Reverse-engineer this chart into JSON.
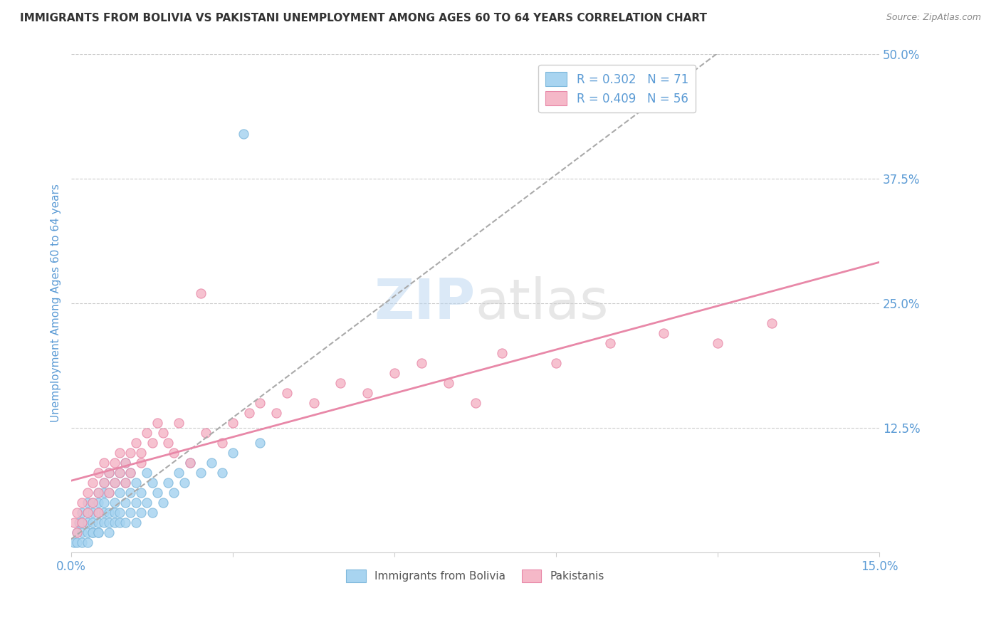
{
  "title": "IMMIGRANTS FROM BOLIVIA VS PAKISTANI UNEMPLOYMENT AMONG AGES 60 TO 64 YEARS CORRELATION CHART",
  "source": "Source: ZipAtlas.com",
  "ylabel": "Unemployment Among Ages 60 to 64 years",
  "xlim": [
    0.0,
    0.15
  ],
  "ylim": [
    0.0,
    0.5
  ],
  "xticks": [
    0.0,
    0.03,
    0.06,
    0.09,
    0.12,
    0.15
  ],
  "xtick_labels": [
    "0.0%",
    "",
    "",
    "",
    "",
    "15.0%"
  ],
  "ytick_labels_right": [
    "12.5%",
    "25.0%",
    "37.5%",
    "50.0%"
  ],
  "yticks_right": [
    0.125,
    0.25,
    0.375,
    0.5
  ],
  "legend1_label": "Immigrants from Bolivia",
  "legend2_label": "Pakistanis",
  "R1": 0.302,
  "N1": 71,
  "R2": 0.409,
  "N2": 56,
  "color_blue": "#A8D4F0",
  "color_blue_border": "#7EB8DC",
  "color_pink": "#F5B8C8",
  "color_pink_border": "#E888A8",
  "color_trendline_blue": "#AAAAAA",
  "color_trendline_pink": "#E888A8",
  "background_color": "#FFFFFF",
  "grid_color": "#CCCCCC",
  "title_color": "#333333",
  "axis_label_color": "#5B9BD5",
  "scatter_blue_x": [
    0.0005,
    0.001,
    0.001,
    0.0015,
    0.002,
    0.002,
    0.002,
    0.002,
    0.003,
    0.003,
    0.003,
    0.003,
    0.003,
    0.004,
    0.004,
    0.004,
    0.004,
    0.004,
    0.005,
    0.005,
    0.005,
    0.005,
    0.005,
    0.005,
    0.006,
    0.006,
    0.006,
    0.006,
    0.006,
    0.007,
    0.007,
    0.007,
    0.007,
    0.007,
    0.008,
    0.008,
    0.008,
    0.008,
    0.009,
    0.009,
    0.009,
    0.009,
    0.01,
    0.01,
    0.01,
    0.01,
    0.011,
    0.011,
    0.011,
    0.012,
    0.012,
    0.012,
    0.013,
    0.013,
    0.014,
    0.014,
    0.015,
    0.015,
    0.016,
    0.017,
    0.018,
    0.019,
    0.02,
    0.021,
    0.022,
    0.024,
    0.026,
    0.028,
    0.03,
    0.035,
    0.032
  ],
  "scatter_blue_y": [
    0.01,
    0.02,
    0.01,
    0.03,
    0.02,
    0.01,
    0.03,
    0.04,
    0.02,
    0.04,
    0.01,
    0.03,
    0.05,
    0.03,
    0.02,
    0.04,
    0.02,
    0.05,
    0.04,
    0.02,
    0.06,
    0.03,
    0.05,
    0.02,
    0.04,
    0.06,
    0.03,
    0.05,
    0.07,
    0.04,
    0.02,
    0.06,
    0.08,
    0.03,
    0.05,
    0.03,
    0.07,
    0.04,
    0.06,
    0.04,
    0.08,
    0.03,
    0.05,
    0.07,
    0.03,
    0.09,
    0.06,
    0.04,
    0.08,
    0.05,
    0.07,
    0.03,
    0.06,
    0.04,
    0.08,
    0.05,
    0.07,
    0.04,
    0.06,
    0.05,
    0.07,
    0.06,
    0.08,
    0.07,
    0.09,
    0.08,
    0.09,
    0.08,
    0.1,
    0.11,
    0.42
  ],
  "scatter_pink_x": [
    0.0005,
    0.001,
    0.001,
    0.002,
    0.002,
    0.003,
    0.003,
    0.004,
    0.004,
    0.005,
    0.005,
    0.005,
    0.006,
    0.006,
    0.007,
    0.007,
    0.008,
    0.008,
    0.009,
    0.009,
    0.01,
    0.01,
    0.011,
    0.011,
    0.012,
    0.013,
    0.013,
    0.014,
    0.015,
    0.016,
    0.017,
    0.018,
    0.019,
    0.02,
    0.022,
    0.024,
    0.025,
    0.028,
    0.03,
    0.033,
    0.035,
    0.038,
    0.04,
    0.045,
    0.05,
    0.055,
    0.06,
    0.065,
    0.07,
    0.075,
    0.08,
    0.09,
    0.1,
    0.11,
    0.12,
    0.13
  ],
  "scatter_pink_y": [
    0.03,
    0.04,
    0.02,
    0.05,
    0.03,
    0.06,
    0.04,
    0.07,
    0.05,
    0.08,
    0.06,
    0.04,
    0.09,
    0.07,
    0.08,
    0.06,
    0.09,
    0.07,
    0.08,
    0.1,
    0.07,
    0.09,
    0.1,
    0.08,
    0.11,
    0.1,
    0.09,
    0.12,
    0.11,
    0.13,
    0.12,
    0.11,
    0.1,
    0.13,
    0.09,
    0.26,
    0.12,
    0.11,
    0.13,
    0.14,
    0.15,
    0.14,
    0.16,
    0.15,
    0.17,
    0.16,
    0.18,
    0.19,
    0.17,
    0.15,
    0.2,
    0.19,
    0.21,
    0.22,
    0.21,
    0.23
  ]
}
